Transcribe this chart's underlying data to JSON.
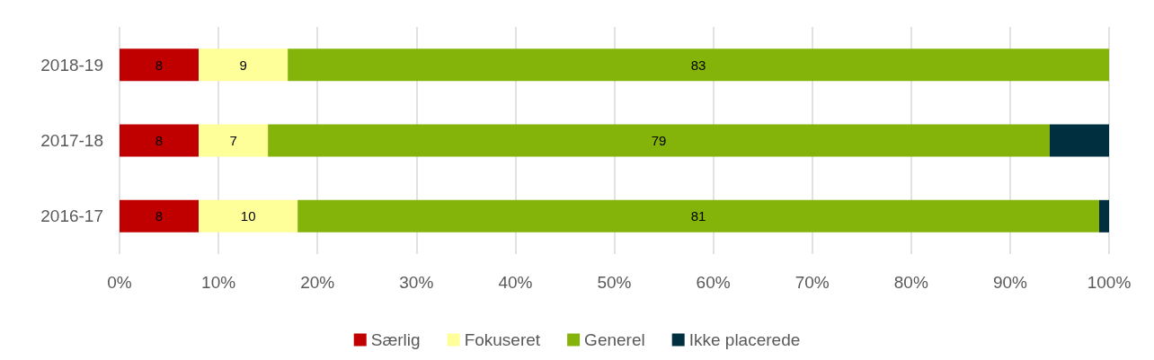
{
  "chart_data": {
    "type": "bar",
    "orientation": "horizontal",
    "stacked": true,
    "categories": [
      "2018-19",
      "2017-18",
      "2016-17"
    ],
    "series": [
      {
        "name": "Særlig",
        "color": "#c00000",
        "values": [
          8,
          8,
          8
        ],
        "value_labels": [
          "8",
          "8",
          "8"
        ]
      },
      {
        "name": "Fokuseret",
        "color": "#ffff99",
        "values": [
          9,
          7,
          10
        ],
        "value_labels": [
          "9",
          "7",
          "10"
        ]
      },
      {
        "name": "Generel",
        "color": "#84b40a",
        "values": [
          83,
          79,
          81
        ],
        "value_labels": [
          "83",
          "79",
          "81"
        ]
      },
      {
        "name": "Ikke placerede",
        "color": "#003040",
        "values": [
          null,
          6,
          1
        ]
      }
    ],
    "xlim": [
      0,
      100
    ],
    "xticks": [
      {
        "value": 0,
        "label": "0%"
      },
      {
        "value": 10,
        "label": "10%"
      },
      {
        "value": 20,
        "label": "20%"
      },
      {
        "value": 30,
        "label": "30%"
      },
      {
        "value": 40,
        "label": "40%"
      },
      {
        "value": 50,
        "label": "50%"
      },
      {
        "value": 60,
        "label": "60%"
      },
      {
        "value": 70,
        "label": "70%"
      },
      {
        "value": 80,
        "label": "80%"
      },
      {
        "value": 90,
        "label": "90%"
      },
      {
        "value": 100,
        "label": "100%"
      }
    ],
    "grid": "x",
    "legend": "bottom"
  }
}
